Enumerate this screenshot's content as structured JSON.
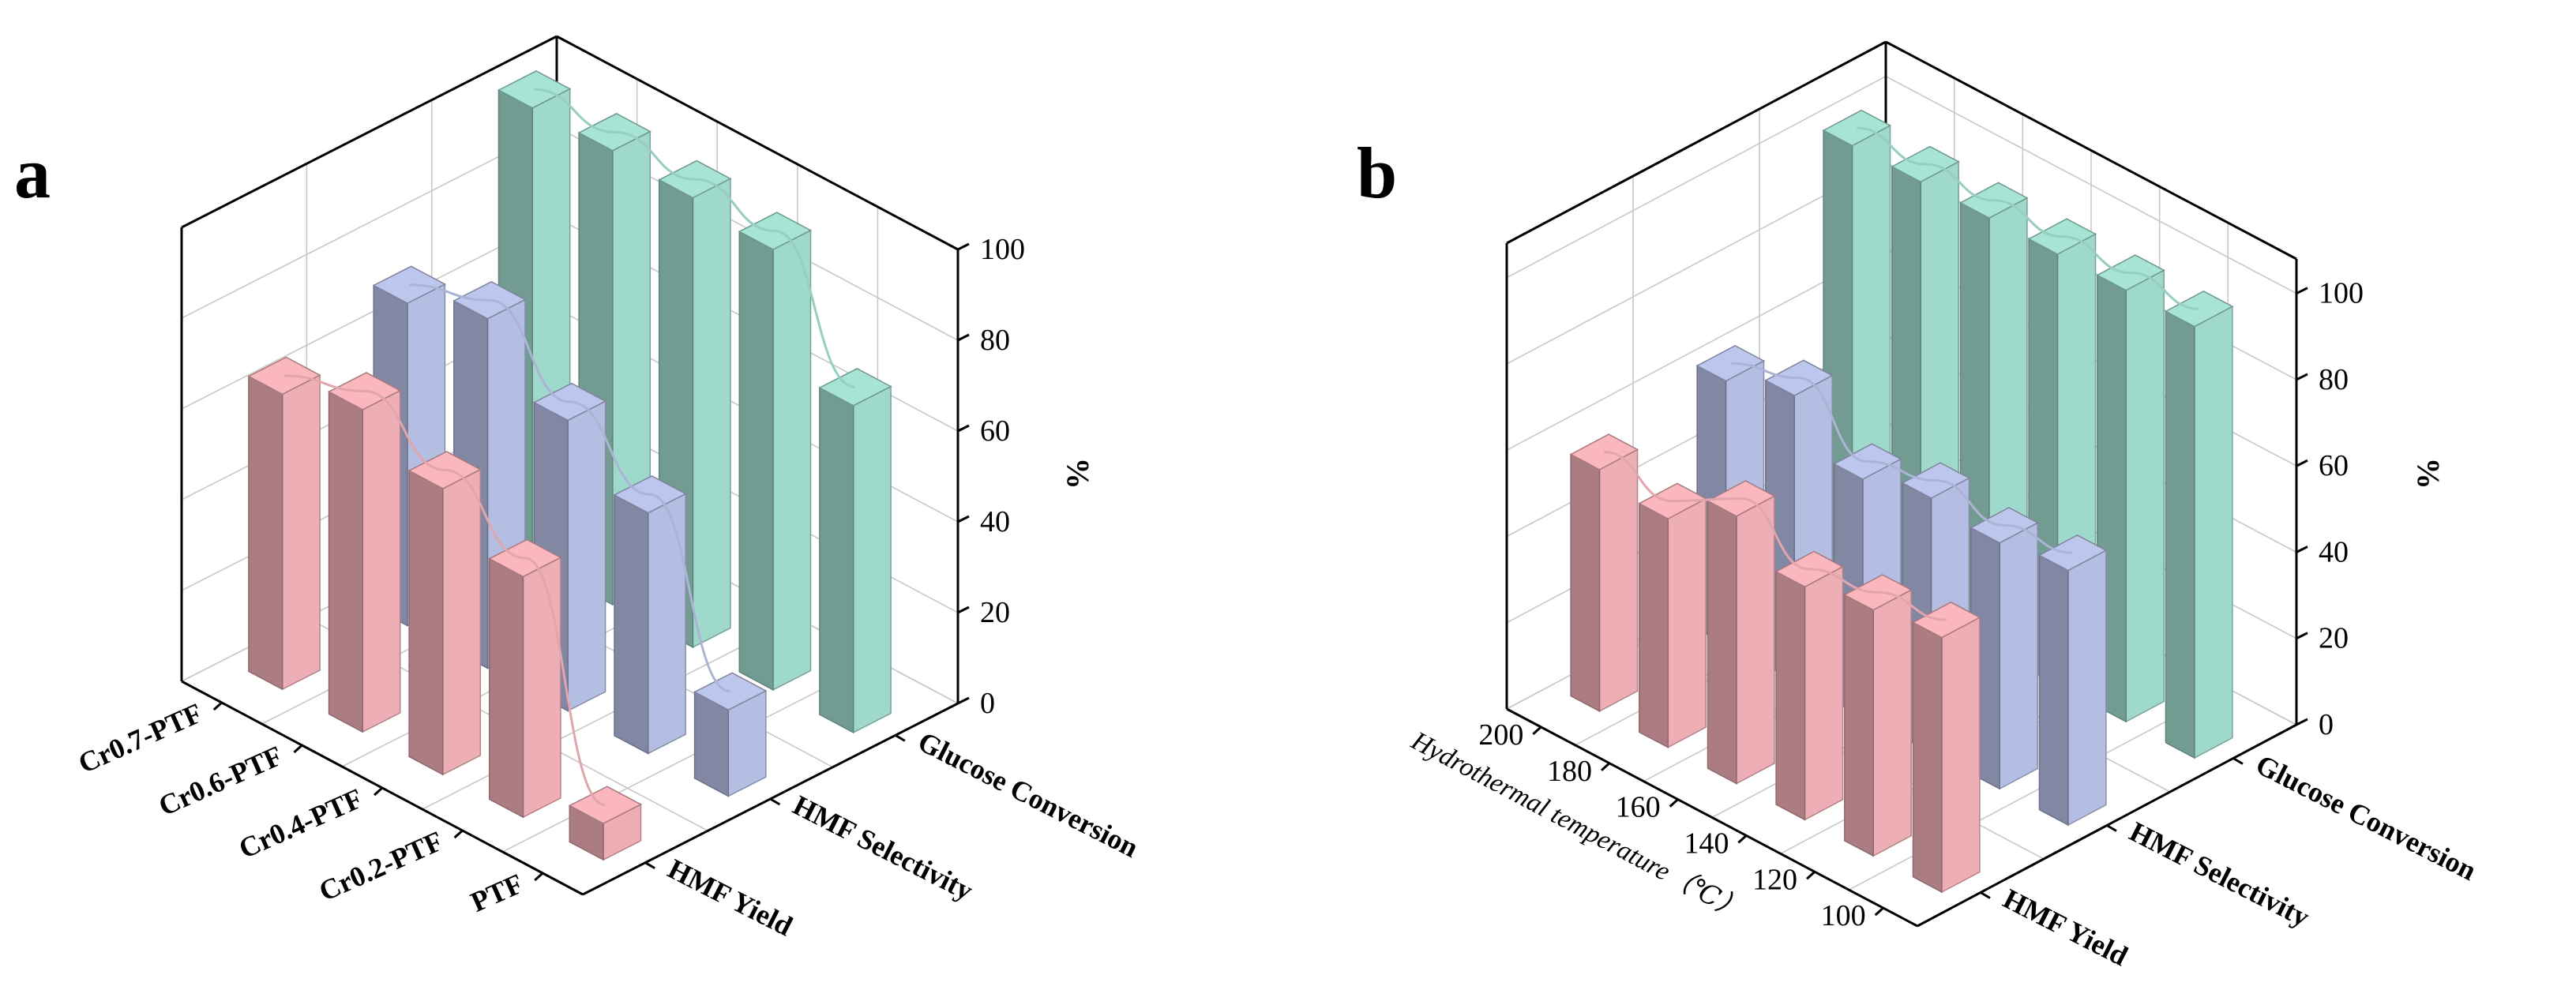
{
  "chart_data": [
    {
      "type": "bar",
      "panel": "a",
      "title": "",
      "xlabel": "",
      "ylabel": "",
      "zlabel": "%",
      "categories": [
        "PTF",
        "Cr0.2-PTF",
        "Cr0.4-PTF",
        "Cr0.6-PTF",
        "Cr0.7-PTF"
      ],
      "series": [
        {
          "name": "HMF Yield",
          "values": [
            8,
            53,
            63,
            71,
            65
          ]
        },
        {
          "name": "HMF Selectivity",
          "values": [
            19,
            53,
            64,
            77,
            71
          ]
        },
        {
          "name": "Glucose Conversion",
          "values": [
            72,
            97,
            99,
            100,
            100
          ]
        }
      ],
      "zlim": [
        0,
        100
      ],
      "zticks": [
        "0",
        "20",
        "40",
        "60",
        "80",
        "100"
      ],
      "grid": true,
      "colors": {
        "HMF Yield": "#eeaeb5",
        "HMF Selectivity": "#b4bde2",
        "Glucose Conversion": "#9fd9cb"
      }
    },
    {
      "type": "bar",
      "panel": "b",
      "title": "",
      "xlabel": "Hydrothermal temperature（℃）",
      "ylabel": "",
      "zlabel": "%",
      "categories": [
        "100",
        "120",
        "140",
        "160",
        "180",
        "200"
      ],
      "series": [
        {
          "name": "HMF Yield",
          "values": [
            59,
            57,
            54,
            62,
            53,
            56
          ]
        },
        {
          "name": "HMF Selectivity",
          "values": [
            59,
            57,
            59,
            55,
            66,
            61
          ]
        },
        {
          "name": "Glucose Conversion",
          "values": [
            100,
            100,
            100,
            100,
            100,
            100
          ]
        }
      ],
      "zlim": [
        0,
        100
      ],
      "zticks": [
        "0",
        "20",
        "40",
        "60",
        "80",
        "100"
      ],
      "grid": true,
      "colors": {
        "HMF Yield": "#eeaeb5",
        "HMF Selectivity": "#b4bde2",
        "Glucose Conversion": "#9fd9cb"
      }
    }
  ]
}
